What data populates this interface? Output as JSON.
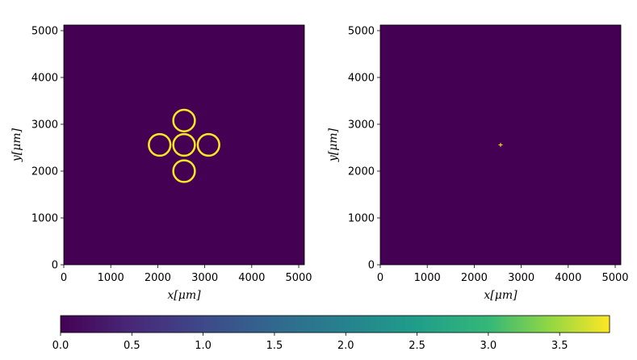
{
  "chart_data": [
    {
      "type": "heatmap",
      "xlabel": "x[μm]",
      "ylabel": "y[μm]",
      "xlim": [
        0,
        5120
      ],
      "ylim": [
        0,
        5120
      ],
      "xticks": [
        0,
        1000,
        2000,
        3000,
        4000,
        5000
      ],
      "yticks": [
        0,
        1000,
        2000,
        3000,
        4000,
        5000
      ],
      "background_value": 0,
      "features": [
        {
          "shape": "ring",
          "cx": 2560,
          "cy": 2560,
          "r": 230,
          "value": 3.85
        },
        {
          "shape": "ring",
          "cx": 2040,
          "cy": 2560,
          "r": 230,
          "value": 3.85
        },
        {
          "shape": "ring",
          "cx": 3080,
          "cy": 2560,
          "r": 230,
          "value": 3.85
        },
        {
          "shape": "ring",
          "cx": 2560,
          "cy": 3080,
          "r": 230,
          "value": 3.85
        },
        {
          "shape": "ring",
          "cx": 2560,
          "cy": 2000,
          "r": 230,
          "value": 3.85
        }
      ]
    },
    {
      "type": "heatmap",
      "xlabel": "x[μm]",
      "ylabel": "y[μm]",
      "xlim": [
        0,
        5120
      ],
      "ylim": [
        0,
        5120
      ],
      "xticks": [
        0,
        1000,
        2000,
        3000,
        4000,
        5000
      ],
      "yticks": [
        0,
        1000,
        2000,
        3000,
        4000,
        5000
      ],
      "background_value": 0,
      "features": [
        {
          "shape": "point",
          "cx": 2560,
          "cy": 2560,
          "value": 3.85
        }
      ]
    }
  ],
  "colorbar": {
    "colormap": "viridis",
    "min": 0,
    "max": 3.85,
    "ticks": [
      0.0,
      0.5,
      1.0,
      1.5,
      2.0,
      2.5,
      3.0,
      3.5
    ],
    "tick_labels": [
      "0.0",
      "0.5",
      "1.0",
      "1.5",
      "2.0",
      "2.5",
      "3.0",
      "3.5"
    ]
  }
}
